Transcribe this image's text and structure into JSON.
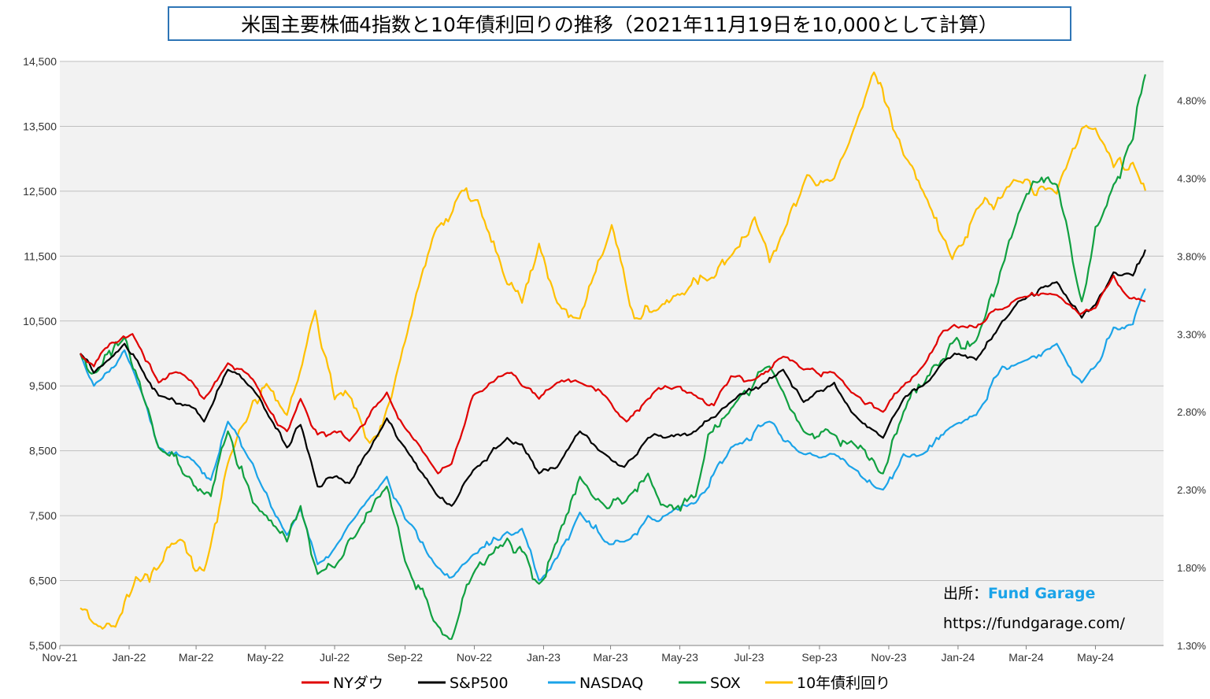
{
  "chart_data": {
    "type": "line",
    "title": "米国主要株価4指数と10年債利回りの推移（2021年11月19日を10,000として計算）",
    "y_left": {
      "ticks": [
        "14,500",
        "13,500",
        "12,500",
        "11,500",
        "10,500",
        "9,500",
        "8,500",
        "7,500",
        "6,500",
        "5,500"
      ],
      "range": [
        5500,
        14500
      ]
    },
    "y_right": {
      "ticks": [
        "4.80%",
        "4.30%",
        "3.80%",
        "3.30%",
        "2.80%",
        "2.30%",
        "1.80%",
        "1.30%"
      ],
      "range": [
        1.3,
        5.05
      ]
    },
    "x_ticks": [
      "Nov-21",
      "Jan-22",
      "Mar-22",
      "May-22",
      "Jul-22",
      "Sep-22",
      "Nov-22",
      "Jan-23",
      "Mar-23",
      "May-23",
      "Jul-23",
      "Sep-23",
      "Nov-23",
      "Jan-24",
      "Mar-24",
      "May-24"
    ],
    "grid": true,
    "legend_position": "bottom",
    "series": [
      {
        "name": "NYダウ",
        "color": "#e00000",
        "axis": "left",
        "points": [
          [
            "2021-11-19",
            10000
          ],
          [
            "2021-12-01",
            9800
          ],
          [
            "2021-12-15",
            10150
          ],
          [
            "2022-01-04",
            10300
          ],
          [
            "2022-01-27",
            9550
          ],
          [
            "2022-02-15",
            9700
          ],
          [
            "2022-03-08",
            9300
          ],
          [
            "2022-03-29",
            9850
          ],
          [
            "2022-04-20",
            9600
          ],
          [
            "2022-05-02",
            9200
          ],
          [
            "2022-05-20",
            8800
          ],
          [
            "2022-06-01",
            9300
          ],
          [
            "2022-06-16",
            8750
          ],
          [
            "2022-07-01",
            8800
          ],
          [
            "2022-07-14",
            8650
          ],
          [
            "2022-08-16",
            9400
          ],
          [
            "2022-09-01",
            8850
          ],
          [
            "2022-09-30",
            8150
          ],
          [
            "2022-10-12",
            8300
          ],
          [
            "2022-10-31",
            9350
          ],
          [
            "2022-11-30",
            9700
          ],
          [
            "2022-12-13",
            9500
          ],
          [
            "2022-12-28",
            9300
          ],
          [
            "2023-01-13",
            9550
          ],
          [
            "2023-02-02",
            9550
          ],
          [
            "2023-02-24",
            9350
          ],
          [
            "2023-03-15",
            8950
          ],
          [
            "2023-04-03",
            9300
          ],
          [
            "2023-04-18",
            9500
          ],
          [
            "2023-05-15",
            9350
          ],
          [
            "2023-05-31",
            9200
          ],
          [
            "2023-06-15",
            9650
          ],
          [
            "2023-07-06",
            9600
          ],
          [
            "2023-07-31",
            9950
          ],
          [
            "2023-08-18",
            9750
          ],
          [
            "2023-09-14",
            9700
          ],
          [
            "2023-09-29",
            9400
          ],
          [
            "2023-10-27",
            9100
          ],
          [
            "2023-11-14",
            9500
          ],
          [
            "2023-12-01",
            9800
          ],
          [
            "2023-12-19",
            10350
          ],
          [
            "2024-01-17",
            10400
          ],
          [
            "2024-02-01",
            10650
          ],
          [
            "2024-02-23",
            10850
          ],
          [
            "2024-03-28",
            10900
          ],
          [
            "2024-04-17",
            10600
          ],
          [
            "2024-05-01",
            10700
          ],
          [
            "2024-05-17",
            11200
          ],
          [
            "2024-05-31",
            10850
          ],
          [
            "2024-06-14",
            10800
          ]
        ]
      },
      {
        "name": "S&P500",
        "color": "#000000",
        "axis": "left",
        "points": [
          [
            "2021-11-19",
            10000
          ],
          [
            "2021-12-01",
            9700
          ],
          [
            "2021-12-28",
            10150
          ],
          [
            "2022-01-14",
            9700
          ],
          [
            "2022-01-27",
            9350
          ],
          [
            "2022-02-23",
            9200
          ],
          [
            "2022-03-08",
            8950
          ],
          [
            "2022-03-29",
            9750
          ],
          [
            "2022-04-20",
            9450
          ],
          [
            "2022-05-02",
            9100
          ],
          [
            "2022-05-20",
            8550
          ],
          [
            "2022-06-01",
            8900
          ],
          [
            "2022-06-16",
            7950
          ],
          [
            "2022-07-01",
            8100
          ],
          [
            "2022-07-14",
            8000
          ],
          [
            "2022-08-16",
            9000
          ],
          [
            "2022-09-01",
            8550
          ],
          [
            "2022-09-30",
            7800
          ],
          [
            "2022-10-12",
            7650
          ],
          [
            "2022-10-31",
            8200
          ],
          [
            "2022-11-30",
            8700
          ],
          [
            "2022-12-13",
            8600
          ],
          [
            "2022-12-28",
            8150
          ],
          [
            "2023-01-13",
            8250
          ],
          [
            "2023-02-02",
            8800
          ],
          [
            "2023-02-24",
            8450
          ],
          [
            "2023-03-13",
            8250
          ],
          [
            "2023-04-03",
            8700
          ],
          [
            "2023-04-18",
            8700
          ],
          [
            "2023-05-15",
            8800
          ],
          [
            "2023-06-15",
            9250
          ],
          [
            "2023-07-31",
            9750
          ],
          [
            "2023-08-18",
            9250
          ],
          [
            "2023-09-14",
            9550
          ],
          [
            "2023-09-29",
            9100
          ],
          [
            "2023-10-27",
            8700
          ],
          [
            "2023-11-14",
            9300
          ],
          [
            "2023-12-01",
            9500
          ],
          [
            "2023-12-29",
            10000
          ],
          [
            "2024-01-17",
            9900
          ],
          [
            "2024-02-09",
            10500
          ],
          [
            "2024-02-23",
            10800
          ],
          [
            "2024-03-28",
            11100
          ],
          [
            "2024-04-19",
            10550
          ],
          [
            "2024-05-01",
            10750
          ],
          [
            "2024-05-17",
            11250
          ],
          [
            "2024-06-03",
            11200
          ],
          [
            "2024-06-14",
            11600
          ]
        ]
      },
      {
        "name": "NASDAQ",
        "color": "#1aa3e8",
        "axis": "left",
        "points": [
          [
            "2021-11-19",
            10000
          ],
          [
            "2021-12-01",
            9500
          ],
          [
            "2021-12-28",
            10050
          ],
          [
            "2022-01-14",
            9300
          ],
          [
            "2022-01-27",
            8550
          ],
          [
            "2022-02-23",
            8400
          ],
          [
            "2022-03-14",
            8050
          ],
          [
            "2022-03-29",
            8950
          ],
          [
            "2022-04-20",
            8300
          ],
          [
            "2022-05-02",
            7850
          ],
          [
            "2022-05-20",
            7200
          ],
          [
            "2022-06-01",
            7600
          ],
          [
            "2022-06-16",
            6750
          ],
          [
            "2022-07-01",
            7000
          ],
          [
            "2022-08-16",
            8100
          ],
          [
            "2022-09-01",
            7450
          ],
          [
            "2022-09-30",
            6700
          ],
          [
            "2022-10-12",
            6550
          ],
          [
            "2022-10-31",
            6900
          ],
          [
            "2022-11-30",
            7250
          ],
          [
            "2022-12-13",
            7300
          ],
          [
            "2022-12-28",
            6500
          ],
          [
            "2023-01-13",
            6850
          ],
          [
            "2023-02-02",
            7550
          ],
          [
            "2023-02-24",
            7100
          ],
          [
            "2023-03-13",
            7100
          ],
          [
            "2023-04-03",
            7500
          ],
          [
            "2023-04-18",
            7500
          ],
          [
            "2023-05-15",
            7700
          ],
          [
            "2023-06-15",
            8550
          ],
          [
            "2023-07-19",
            8950
          ],
          [
            "2023-08-18",
            8450
          ],
          [
            "2023-09-14",
            8450
          ],
          [
            "2023-09-29",
            8250
          ],
          [
            "2023-10-27",
            7900
          ],
          [
            "2023-11-14",
            8450
          ],
          [
            "2023-12-01",
            8450
          ],
          [
            "2023-12-29",
            8900
          ],
          [
            "2024-01-17",
            9050
          ],
          [
            "2024-02-09",
            9800
          ],
          [
            "2024-02-23",
            9850
          ],
          [
            "2024-03-28",
            10150
          ],
          [
            "2024-04-19",
            9550
          ],
          [
            "2024-05-01",
            9800
          ],
          [
            "2024-05-17",
            10400
          ],
          [
            "2024-06-03",
            10450
          ],
          [
            "2024-06-14",
            11000
          ]
        ]
      },
      {
        "name": "SOX",
        "color": "#10a040",
        "axis": "left",
        "points": [
          [
            "2021-11-19",
            10000
          ],
          [
            "2021-12-01",
            9700
          ],
          [
            "2021-12-28",
            10250
          ],
          [
            "2022-01-14",
            9300
          ],
          [
            "2022-01-27",
            8550
          ],
          [
            "2022-02-23",
            8100
          ],
          [
            "2022-03-14",
            7800
          ],
          [
            "2022-03-29",
            8800
          ],
          [
            "2022-04-20",
            7700
          ],
          [
            "2022-05-02",
            7500
          ],
          [
            "2022-05-20",
            7100
          ],
          [
            "2022-06-01",
            7650
          ],
          [
            "2022-06-16",
            6600
          ],
          [
            "2022-07-01",
            6700
          ],
          [
            "2022-08-16",
            7950
          ],
          [
            "2022-09-01",
            6800
          ],
          [
            "2022-09-30",
            5800
          ],
          [
            "2022-10-12",
            5600
          ],
          [
            "2022-10-31",
            6600
          ],
          [
            "2022-11-30",
            7150
          ],
          [
            "2022-12-13",
            6950
          ],
          [
            "2022-12-28",
            6450
          ],
          [
            "2023-01-13",
            7100
          ],
          [
            "2023-02-02",
            8100
          ],
          [
            "2023-02-24",
            7650
          ],
          [
            "2023-03-13",
            7700
          ],
          [
            "2023-04-03",
            8150
          ],
          [
            "2023-04-18",
            7650
          ],
          [
            "2023-05-15",
            7800
          ],
          [
            "2023-05-26",
            8750
          ],
          [
            "2023-06-15",
            9150
          ],
          [
            "2023-07-19",
            9800
          ],
          [
            "2023-08-18",
            8800
          ],
          [
            "2023-09-14",
            8750
          ],
          [
            "2023-09-29",
            8650
          ],
          [
            "2023-10-27",
            8150
          ],
          [
            "2023-11-14",
            9100
          ],
          [
            "2023-12-01",
            9500
          ],
          [
            "2023-12-29",
            10200
          ],
          [
            "2024-01-17",
            10200
          ],
          [
            "2024-02-09",
            11350
          ],
          [
            "2024-02-23",
            12150
          ],
          [
            "2024-03-07",
            12650
          ],
          [
            "2024-03-28",
            12600
          ],
          [
            "2024-04-19",
            10800
          ],
          [
            "2024-05-01",
            11950
          ],
          [
            "2024-05-17",
            12600
          ],
          [
            "2024-06-03",
            13300
          ],
          [
            "2024-06-14",
            14300
          ]
        ]
      },
      {
        "name": "10年債利回り",
        "color": "#ffc000",
        "axis": "right",
        "points": [
          [
            "2021-11-19",
            1.54
          ],
          [
            "2021-12-01",
            1.44
          ],
          [
            "2021-12-20",
            1.42
          ],
          [
            "2022-01-07",
            1.74
          ],
          [
            "2022-01-27",
            1.8
          ],
          [
            "2022-02-15",
            1.98
          ],
          [
            "2022-03-08",
            1.78
          ],
          [
            "2022-03-29",
            2.47
          ],
          [
            "2022-04-20",
            2.87
          ],
          [
            "2022-05-02",
            2.98
          ],
          [
            "2022-05-20",
            2.78
          ],
          [
            "2022-06-14",
            3.45
          ],
          [
            "2022-07-01",
            2.88
          ],
          [
            "2022-07-14",
            2.9
          ],
          [
            "2022-08-01",
            2.6
          ],
          [
            "2022-08-16",
            2.82
          ],
          [
            "2022-09-01",
            3.25
          ],
          [
            "2022-09-27",
            3.95
          ],
          [
            "2022-10-21",
            4.22
          ],
          [
            "2022-11-04",
            4.16
          ],
          [
            "2022-11-30",
            3.62
          ],
          [
            "2022-12-13",
            3.5
          ],
          [
            "2022-12-28",
            3.88
          ],
          [
            "2023-01-13",
            3.5
          ],
          [
            "2023-02-02",
            3.4
          ],
          [
            "2023-03-02",
            4.0
          ],
          [
            "2023-03-22",
            3.4
          ],
          [
            "2023-04-10",
            3.45
          ],
          [
            "2023-05-01",
            3.55
          ],
          [
            "2023-05-31",
            3.66
          ],
          [
            "2023-06-15",
            3.8
          ],
          [
            "2023-07-06",
            4.05
          ],
          [
            "2023-07-19",
            3.76
          ],
          [
            "2023-08-21",
            4.32
          ],
          [
            "2023-09-14",
            4.3
          ],
          [
            "2023-09-29",
            4.57
          ],
          [
            "2023-10-19",
            4.98
          ],
          [
            "2023-11-01",
            4.75
          ],
          [
            "2023-11-14",
            4.45
          ],
          [
            "2023-12-01",
            4.22
          ],
          [
            "2023-12-27",
            3.78
          ],
          [
            "2024-01-17",
            4.1
          ],
          [
            "2024-02-09",
            4.18
          ],
          [
            "2024-02-23",
            4.28
          ],
          [
            "2024-03-28",
            4.2
          ],
          [
            "2024-04-19",
            4.62
          ],
          [
            "2024-05-01",
            4.62
          ],
          [
            "2024-05-17",
            4.37
          ],
          [
            "2024-06-03",
            4.4
          ],
          [
            "2024-06-14",
            4.22
          ]
        ]
      }
    ]
  },
  "source": {
    "label": "出所：",
    "name": "Fund Garage",
    "url": "https://fundgarage.com/"
  }
}
